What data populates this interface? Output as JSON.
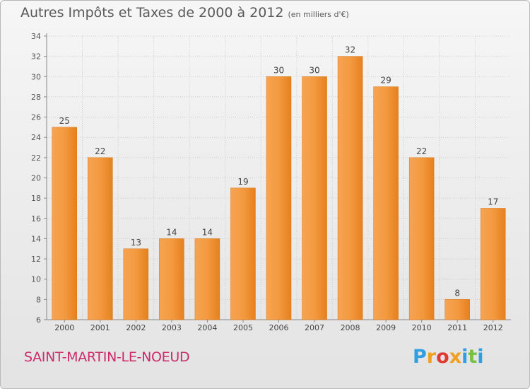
{
  "title": "Autres Impôts et Taxes de 2000 à 2012",
  "unit_note": "(en milliers d'€)",
  "place_name": "SAINT-MARTIN-LE-NOEUD",
  "logo": {
    "text": "Proxiti",
    "letters": [
      "P",
      "r",
      "o",
      "x",
      "i",
      "t",
      "i"
    ]
  },
  "colors": {
    "bar": "#f08a24",
    "bar_light": "#f7a95a",
    "title": "#5a5a5a",
    "place": "#cc2a6a",
    "grid": "#cccccc"
  },
  "chart_data": {
    "type": "bar",
    "categories": [
      "2000",
      "2001",
      "2002",
      "2003",
      "2004",
      "2005",
      "2006",
      "2007",
      "2008",
      "2009",
      "2010",
      "2011",
      "2012"
    ],
    "values": [
      25,
      22,
      13,
      14,
      14,
      19,
      30,
      30,
      32,
      29,
      22,
      8,
      17
    ],
    "ylim": [
      6,
      34
    ],
    "yticks": [
      6,
      8,
      10,
      12,
      14,
      16,
      18,
      20,
      22,
      24,
      26,
      28,
      30,
      32,
      34
    ],
    "grid": true,
    "data_labels": true
  }
}
